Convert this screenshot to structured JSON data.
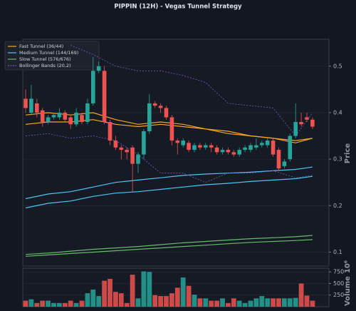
{
  "chart_data": {
    "type": "candlestick",
    "title": "PIPPIN (12H) - Vegas Tunnel Strategy",
    "ylabel": "Price",
    "ylim": [
      0.07,
      0.558
    ],
    "yticks": [
      0.1,
      0.2,
      0.3,
      0.4,
      0.5
    ],
    "grid": true,
    "legend": "upper left",
    "up_color": "#26a69a",
    "down_color": "#ef5350",
    "open": [
      0.43,
      0.4,
      0.42,
      0.405,
      0.38,
      0.39,
      0.39,
      0.4,
      0.39,
      0.375,
      0.395,
      0.38,
      0.42,
      0.49,
      0.49,
      0.38,
      0.34,
      0.325,
      0.32,
      0.325,
      0.29,
      0.31,
      0.36,
      0.42,
      0.415,
      0.41,
      0.39,
      0.34,
      0.33,
      0.335,
      0.32,
      0.33,
      0.325,
      0.33,
      0.325,
      0.315,
      0.32,
      0.315,
      0.31,
      0.32,
      0.32,
      0.325,
      0.33,
      0.33,
      0.34,
      0.32,
      0.285,
      0.3,
      0.35,
      0.38,
      0.39,
      0.385
    ],
    "high": [
      0.45,
      0.46,
      0.43,
      0.41,
      0.395,
      0.4,
      0.41,
      0.405,
      0.395,
      0.41,
      0.4,
      0.43,
      0.52,
      0.51,
      0.5,
      0.385,
      0.35,
      0.33,
      0.325,
      0.33,
      0.315,
      0.365,
      0.44,
      0.425,
      0.42,
      0.415,
      0.395,
      0.345,
      0.345,
      0.34,
      0.335,
      0.335,
      0.335,
      0.335,
      0.33,
      0.325,
      0.325,
      0.32,
      0.325,
      0.33,
      0.335,
      0.345,
      0.34,
      0.345,
      0.345,
      0.325,
      0.3,
      0.355,
      0.42,
      0.4,
      0.4,
      0.39
    ],
    "low": [
      0.4,
      0.395,
      0.39,
      0.37,
      0.375,
      0.385,
      0.385,
      0.38,
      0.365,
      0.37,
      0.375,
      0.375,
      0.415,
      0.485,
      0.375,
      0.33,
      0.32,
      0.3,
      0.3,
      0.23,
      0.27,
      0.3,
      0.355,
      0.41,
      0.4,
      0.385,
      0.33,
      0.31,
      0.325,
      0.315,
      0.315,
      0.32,
      0.32,
      0.315,
      0.31,
      0.31,
      0.31,
      0.305,
      0.305,
      0.315,
      0.315,
      0.32,
      0.325,
      0.325,
      0.305,
      0.275,
      0.28,
      0.295,
      0.345,
      0.37,
      0.38,
      0.365
    ],
    "close": [
      0.41,
      0.43,
      0.4,
      0.38,
      0.39,
      0.395,
      0.4,
      0.385,
      0.375,
      0.4,
      0.38,
      0.42,
      0.49,
      0.5,
      0.38,
      0.34,
      0.325,
      0.32,
      0.315,
      0.29,
      0.31,
      0.36,
      0.42,
      0.415,
      0.41,
      0.39,
      0.34,
      0.335,
      0.34,
      0.32,
      0.33,
      0.325,
      0.33,
      0.325,
      0.315,
      0.32,
      0.315,
      0.31,
      0.32,
      0.325,
      0.33,
      0.33,
      0.335,
      0.34,
      0.31,
      0.28,
      0.295,
      0.35,
      0.38,
      0.375,
      0.385,
      0.37
    ],
    "line_x": [
      0,
      4,
      8,
      12,
      16,
      20,
      24,
      28,
      32,
      36,
      40,
      44,
      48,
      51
    ],
    "tunnels": [
      {
        "name": "Fast Tunnel (36/44)",
        "color": "#f5a623",
        "dashed": false,
        "lines": [
          [
            0.395,
            0.4,
            0.395,
            0.4,
            0.385,
            0.375,
            0.38,
            0.375,
            0.365,
            0.36,
            0.35,
            0.345,
            0.34,
            0.345
          ],
          [
            0.375,
            0.38,
            0.38,
            0.385,
            0.375,
            0.37,
            0.375,
            0.37,
            0.365,
            0.355,
            0.35,
            0.345,
            0.335,
            0.345
          ]
        ]
      },
      {
        "name": "Medium Tunnel (144/169)",
        "color": "#4fc3f7",
        "dashed": false,
        "lines": [
          [
            0.215,
            0.225,
            0.23,
            0.24,
            0.25,
            0.255,
            0.26,
            0.265,
            0.268,
            0.27,
            0.272,
            0.275,
            0.278,
            0.283
          ],
          [
            0.195,
            0.205,
            0.21,
            0.22,
            0.227,
            0.23,
            0.235,
            0.24,
            0.245,
            0.248,
            0.252,
            0.255,
            0.258,
            0.263
          ]
        ]
      },
      {
        "name": "Slow Tunnel (576/676)",
        "color": "#66bb6a",
        "dashed": false,
        "lines": [
          [
            0.095,
            0.098,
            0.102,
            0.106,
            0.109,
            0.112,
            0.116,
            0.12,
            0.123,
            0.126,
            0.129,
            0.131,
            0.133,
            0.136
          ],
          [
            0.091,
            0.094,
            0.097,
            0.1,
            0.103,
            0.106,
            0.109,
            0.112,
            0.115,
            0.118,
            0.121,
            0.123,
            0.125,
            0.127
          ]
        ]
      },
      {
        "name": "Bollinger Bands (20,2)",
        "color": "#7e57c2",
        "dashed": true,
        "lines": [
          [
            null,
            null,
            0.545,
            0.525,
            0.5,
            0.49,
            0.49,
            0.48,
            0.465,
            0.42,
            0.415,
            0.41,
            0.35,
            0.4
          ],
          [
            0.35,
            0.355,
            0.345,
            0.35,
            0.34,
            0.31,
            0.27,
            0.27,
            0.25,
            0.27,
            0.27,
            0.275,
            0.26,
            0.265
          ]
        ]
      }
    ],
    "volume": {
      "ylabel": "Volume",
      "offset": "10⁶",
      "ylim": [
        0,
        830
      ],
      "yticks": [
        250,
        500,
        750
      ],
      "values": [
        130,
        160,
        80,
        130,
        130,
        80,
        80,
        80,
        130,
        80,
        130,
        290,
        370,
        230,
        560,
        600,
        320,
        290,
        80,
        690,
        180,
        760,
        750,
        250,
        230,
        230,
        290,
        410,
        630,
        450,
        260,
        180,
        180,
        130,
        130,
        180,
        80,
        180,
        130,
        80,
        130,
        180,
        230,
        180,
        180,
        180,
        180,
        180,
        190,
        500,
        240,
        130
      ]
    }
  }
}
